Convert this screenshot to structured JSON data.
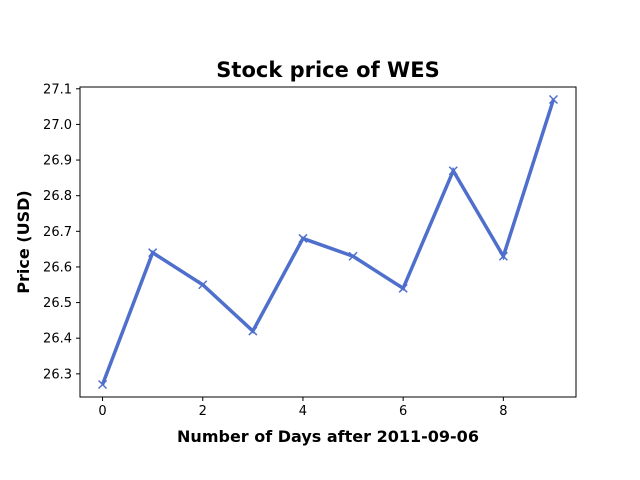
{
  "chart_data": {
    "type": "line",
    "title": "Stock price of WES",
    "xlabel": "Number of Days after 2011-09-06",
    "ylabel": "Price (USD)",
    "x": [
      0,
      1,
      2,
      3,
      4,
      5,
      6,
      7,
      8,
      9
    ],
    "series": [
      {
        "values": [
          26.27,
          26.64,
          26.55,
          26.42,
          26.68,
          26.63,
          26.54,
          26.87,
          26.63,
          27.07
        ],
        "color": "#4f6fcc",
        "marker": "x"
      }
    ],
    "xlim": [
      -0.45,
      9.45
    ],
    "ylim": [
      26.235,
      27.105
    ],
    "xticks": [
      "0",
      "2",
      "4",
      "6",
      "8"
    ],
    "yticks": [
      "26.3",
      "26.4",
      "26.5",
      "26.6",
      "26.7",
      "26.8",
      "26.9",
      "27.0",
      "27.1"
    ],
    "grid": false
  }
}
